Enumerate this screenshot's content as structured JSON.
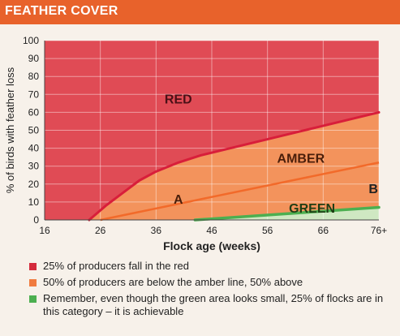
{
  "header": {
    "title": "FEATHER COVER"
  },
  "colors": {
    "header_bg": "#e8622b",
    "red_zone": "#e04b55",
    "amber_zone": "#f3935c",
    "green_zone": "#cfe8c2",
    "red_line": "#d81e3a",
    "amber_line": "#f26a2a",
    "green_line": "#4caf50",
    "legend_red": "#d42a3c",
    "legend_amber": "#f07b3f",
    "legend_green": "#4caf50"
  },
  "chart_data": {
    "type": "area",
    "xlabel": "Flock age (weeks)",
    "ylabel": "% of birds with feather loss",
    "x_ticks": [
      "16",
      "26",
      "36",
      "46",
      "56",
      "66",
      "76+"
    ],
    "y_ticks": [
      "0",
      "10",
      "20",
      "30",
      "40",
      "50",
      "60",
      "70",
      "80",
      "90",
      "100"
    ],
    "xlim": [
      16,
      76
    ],
    "ylim": [
      0,
      100
    ],
    "grid": true,
    "series": [
      {
        "x": [
          24,
          27,
          30,
          33,
          36,
          40,
          44,
          48,
          52,
          56,
          60,
          64,
          68,
          72,
          76
        ],
        "y": [
          0,
          8,
          15,
          22,
          27,
          32,
          36,
          39,
          42,
          45,
          48,
          51,
          54,
          57,
          60
        ]
      },
      {
        "x": [
          26,
          76
        ],
        "y": [
          0,
          32
        ]
      },
      {
        "x": [
          43,
          76
        ],
        "y": [
          0,
          7
        ]
      }
    ],
    "annotations": [
      {
        "text": "RED",
        "x": 40,
        "y": 65
      },
      {
        "text": "AMBER",
        "x": 62,
        "y": 32
      },
      {
        "text": "GREEN",
        "x": 64,
        "y": 4
      },
      {
        "text": "A",
        "x": 40,
        "y": 9
      },
      {
        "text": "B",
        "x": 75,
        "y": 15
      }
    ]
  },
  "legend": [
    {
      "color": "#d42a3c",
      "text": "25% of producers fall in the red"
    },
    {
      "color": "#f07b3f",
      "text": "50% of producers are below the amber line, 50% above"
    },
    {
      "color": "#4caf50",
      "text": "Remember, even though the green area looks small, 25% of flocks are in this category – it is achievable"
    }
  ]
}
